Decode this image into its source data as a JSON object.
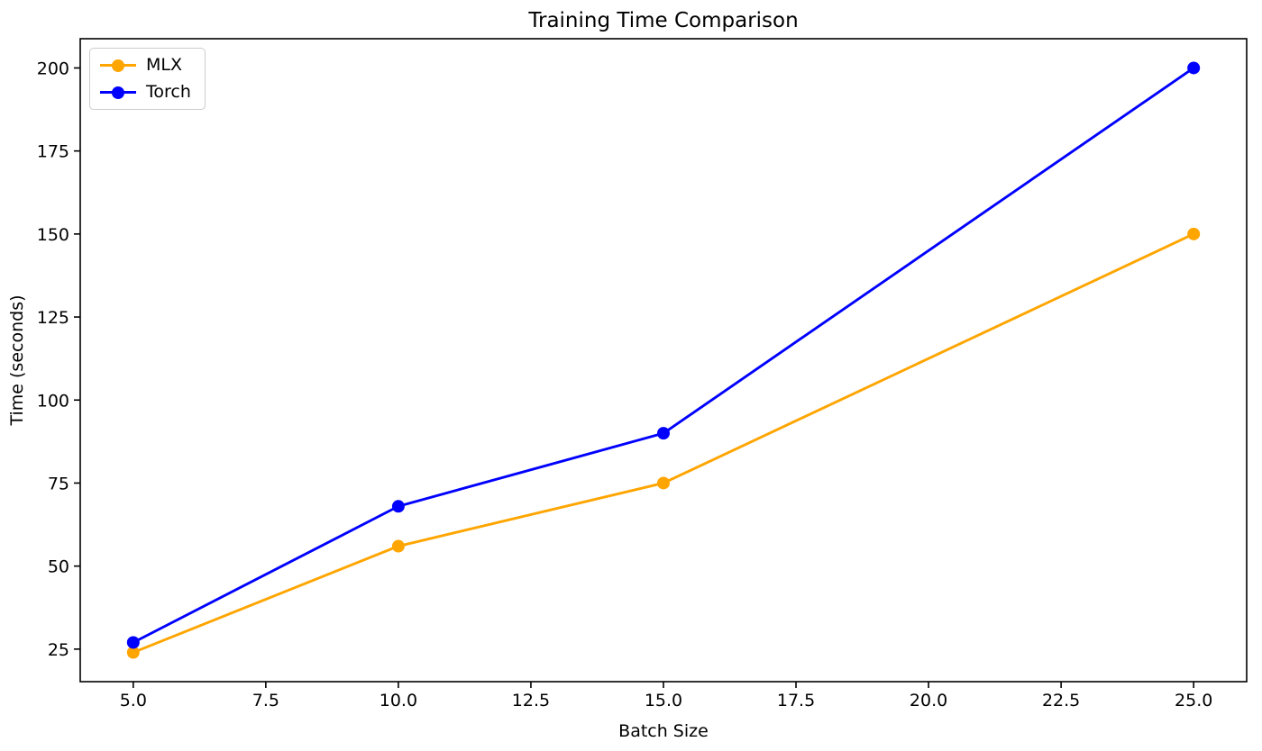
{
  "chart_data": {
    "type": "line",
    "title": "Training Time Comparison",
    "xlabel": "Batch Size",
    "ylabel": "Time (seconds)",
    "x": [
      5,
      10,
      15,
      25
    ],
    "series": [
      {
        "name": "MLX",
        "color": "#ffa500",
        "values": [
          24,
          56,
          75,
          150
        ]
      },
      {
        "name": "Torch",
        "color": "#0000ff",
        "values": [
          27,
          68,
          90,
          200
        ]
      }
    ],
    "xlim": [
      4,
      26
    ],
    "ylim": [
      15.2,
      208.8
    ],
    "xtick_labels": [
      "5.0",
      "7.5",
      "10.0",
      "12.5",
      "15.0",
      "17.5",
      "20.0",
      "22.5",
      "25.0"
    ],
    "ytick_labels": [
      "25",
      "50",
      "75",
      "100",
      "125",
      "150",
      "175",
      "200"
    ],
    "legend_position": "upper left",
    "grid": false,
    "marker": "circle",
    "line_width": 2.9,
    "marker_radius": 7,
    "axis_color": "#000000",
    "background_color": "#ffffff",
    "legend_border_color": "#cccccc"
  }
}
